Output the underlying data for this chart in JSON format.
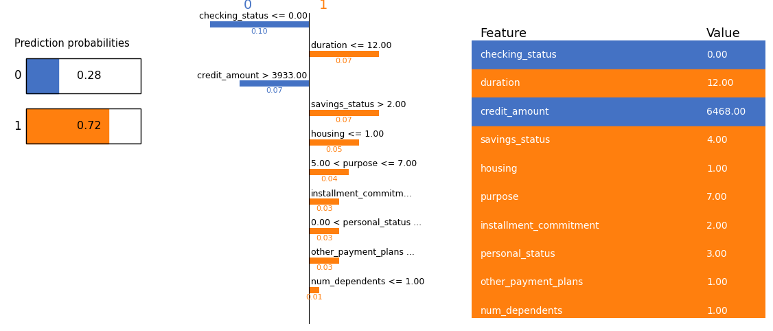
{
  "pred_prob_title": "Prediction probabilities",
  "pred_values": [
    0.28,
    0.72
  ],
  "pred_colors": [
    "#4472c4",
    "#ff7f0e"
  ],
  "class0_color": "#4472c4",
  "class1_color": "#ff7f0e",
  "items": [
    {
      "label": "checking_status <= 0.00",
      "value": 0.1,
      "side": "left",
      "color": "#4472c4"
    },
    {
      "label": "duration <= 12.00",
      "value": 0.07,
      "side": "right",
      "color": "#ff7f0e"
    },
    {
      "label": "credit_amount > 3933.00",
      "value": 0.07,
      "side": "left",
      "color": "#4472c4"
    },
    {
      "label": "savings_status > 2.00",
      "value": 0.07,
      "side": "right",
      "color": "#ff7f0e"
    },
    {
      "label": "housing <= 1.00",
      "value": 0.05,
      "side": "right",
      "color": "#ff7f0e"
    },
    {
      "label": "5.00 < purpose <= 7.00",
      "value": 0.04,
      "side": "right",
      "color": "#ff7f0e"
    },
    {
      "label": "installment_commitm...",
      "value": 0.03,
      "side": "right",
      "color": "#ff7f0e"
    },
    {
      "label": "0.00 < personal_status ...",
      "value": 0.03,
      "side": "right",
      "color": "#ff7f0e"
    },
    {
      "label": "other_payment_plans ...",
      "value": 0.03,
      "side": "right",
      "color": "#ff7f0e"
    },
    {
      "label": "num_dependents <= 1.00",
      "value": 0.01,
      "side": "right",
      "color": "#ff7f0e"
    }
  ],
  "table_features": [
    "checking_status",
    "duration",
    "credit_amount",
    "savings_status",
    "housing",
    "purpose",
    "installment_commitment",
    "personal_status",
    "other_payment_plans",
    "num_dependents"
  ],
  "table_values": [
    "0.00",
    "12.00",
    "6468.00",
    "4.00",
    "1.00",
    "7.00",
    "2.00",
    "3.00",
    "1.00",
    "1.00"
  ],
  "table_row_colors": [
    "#4472c4",
    "#ff7f0e",
    "#4472c4",
    "#ff7f0e",
    "#ff7f0e",
    "#ff7f0e",
    "#ff7f0e",
    "#ff7f0e",
    "#ff7f0e",
    "#ff7f0e"
  ],
  "bg_color": "#ffffff"
}
